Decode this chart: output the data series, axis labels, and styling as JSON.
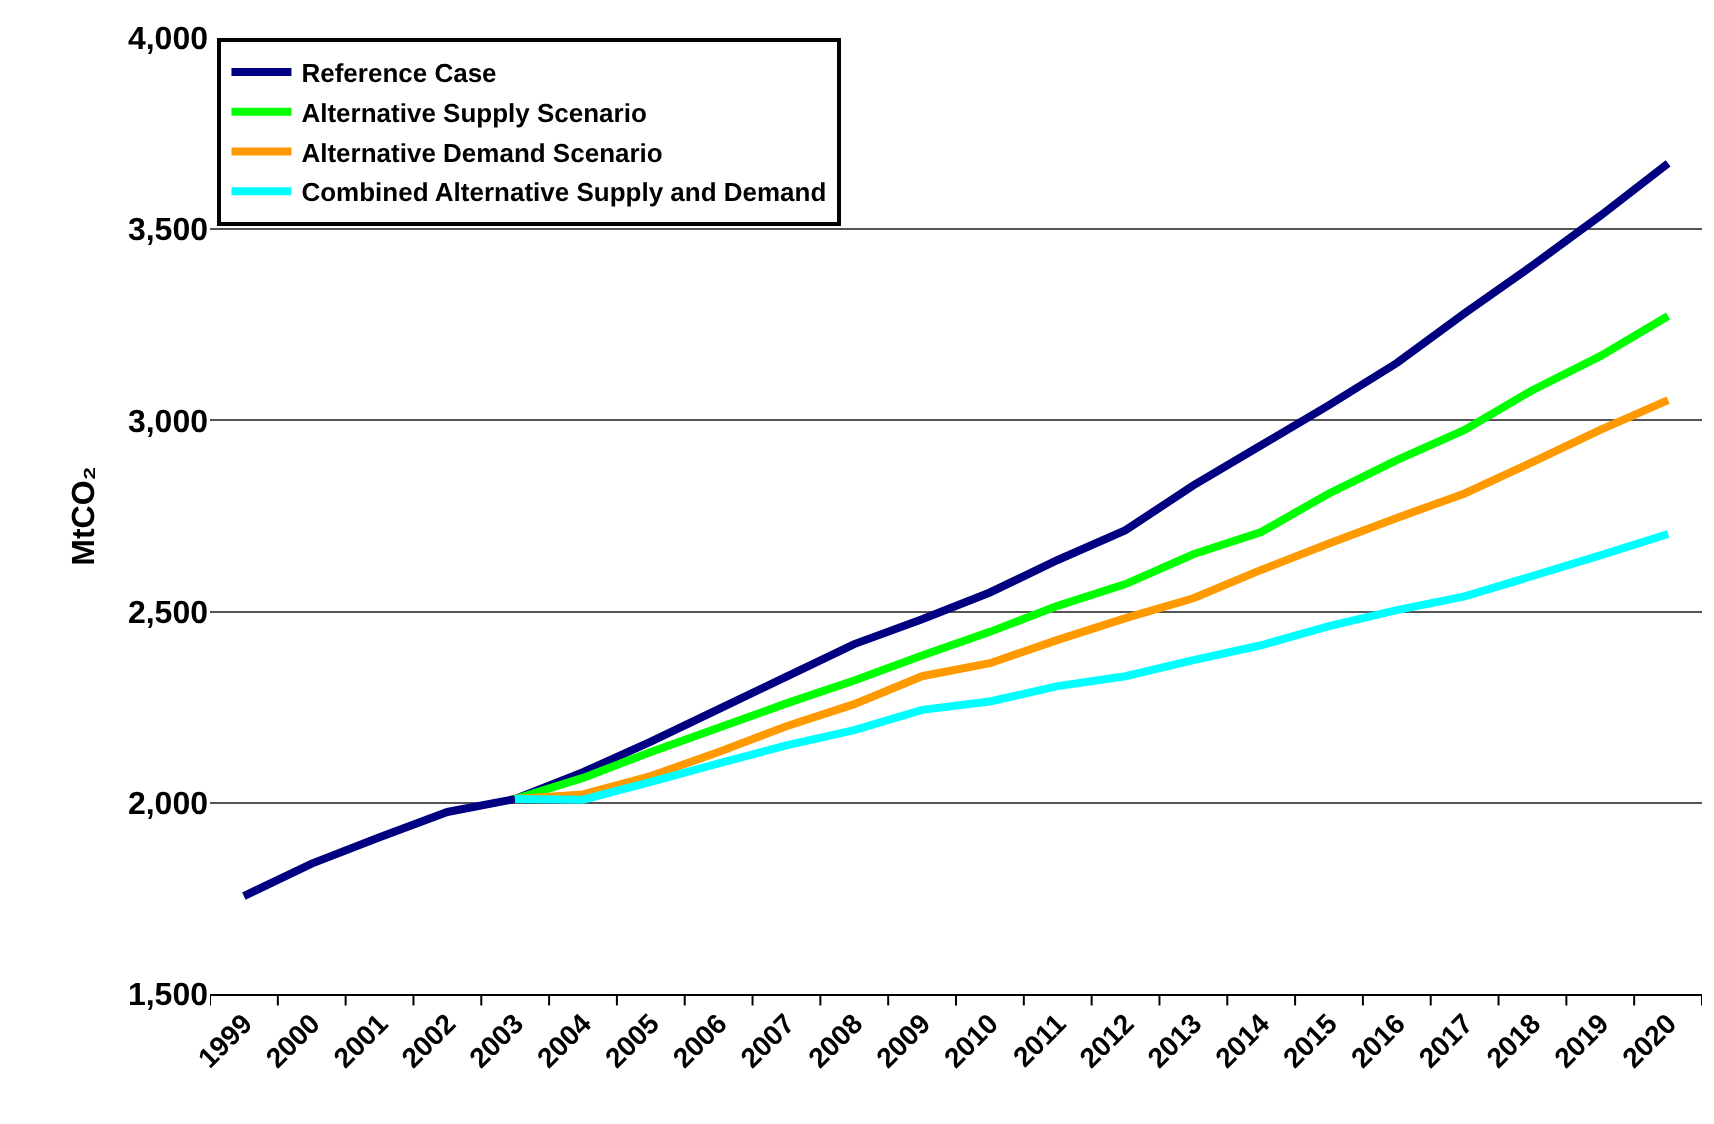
{
  "chart_data": {
    "type": "line",
    "ylabel": "MtCO₂",
    "categories": [
      "1999",
      "2000",
      "2001",
      "2002",
      "2003",
      "2004",
      "2005",
      "2006",
      "2007",
      "2008",
      "2009",
      "2010",
      "2011",
      "2012",
      "2013",
      "2014",
      "2015",
      "2016",
      "2017",
      "2018",
      "2019",
      "2020"
    ],
    "series": [
      {
        "name": "Reference Case",
        "color": "#000080",
        "values": [
          1756,
          1841,
          1910,
          1976,
          2010,
          2080,
          2160,
          2245,
          2330,
          2415,
          2480,
          2550,
          2635,
          2713,
          2830,
          2935,
          3040,
          3150,
          3280,
          3405,
          3535,
          3672
        ]
      },
      {
        "name": "Alternative Supply Scenario",
        "color": "#00ff00",
        "values": [
          null,
          null,
          null,
          null,
          2010,
          2065,
          2133,
          2196,
          2260,
          2320,
          2385,
          2447,
          2515,
          2572,
          2650,
          2708,
          2809,
          2896,
          2975,
          3079,
          3168,
          3273
        ]
      },
      {
        "name": "Alternative Demand Scenario",
        "color": "#ff9900",
        "values": [
          null,
          null,
          null,
          null,
          2010,
          2022,
          2070,
          2133,
          2200,
          2258,
          2331,
          2365,
          2426,
          2483,
          2535,
          2609,
          2678,
          2745,
          2809,
          2891,
          2975,
          3053
        ]
      },
      {
        "name": "Combined Alternative Supply and Demand",
        "color": "#00ffff",
        "values": [
          null,
          null,
          null,
          null,
          2010,
          2008,
          2055,
          2103,
          2150,
          2190,
          2243,
          2265,
          2305,
          2331,
          2373,
          2412,
          2462,
          2504,
          2540,
          2593,
          2647,
          2703
        ]
      }
    ],
    "ylim": [
      1500,
      4000
    ],
    "yticks": [
      {
        "value": 1500,
        "label": "1,500"
      },
      {
        "value": 2000,
        "label": "2,000"
      },
      {
        "value": 2500,
        "label": "2,500"
      },
      {
        "value": 3000,
        "label": "3,000"
      },
      {
        "value": 3500,
        "label": "3,500"
      },
      {
        "value": 4000,
        "label": "4,000"
      }
    ],
    "grid": "y",
    "legend": "top left",
    "marker": "none",
    "line_style": "solid"
  }
}
